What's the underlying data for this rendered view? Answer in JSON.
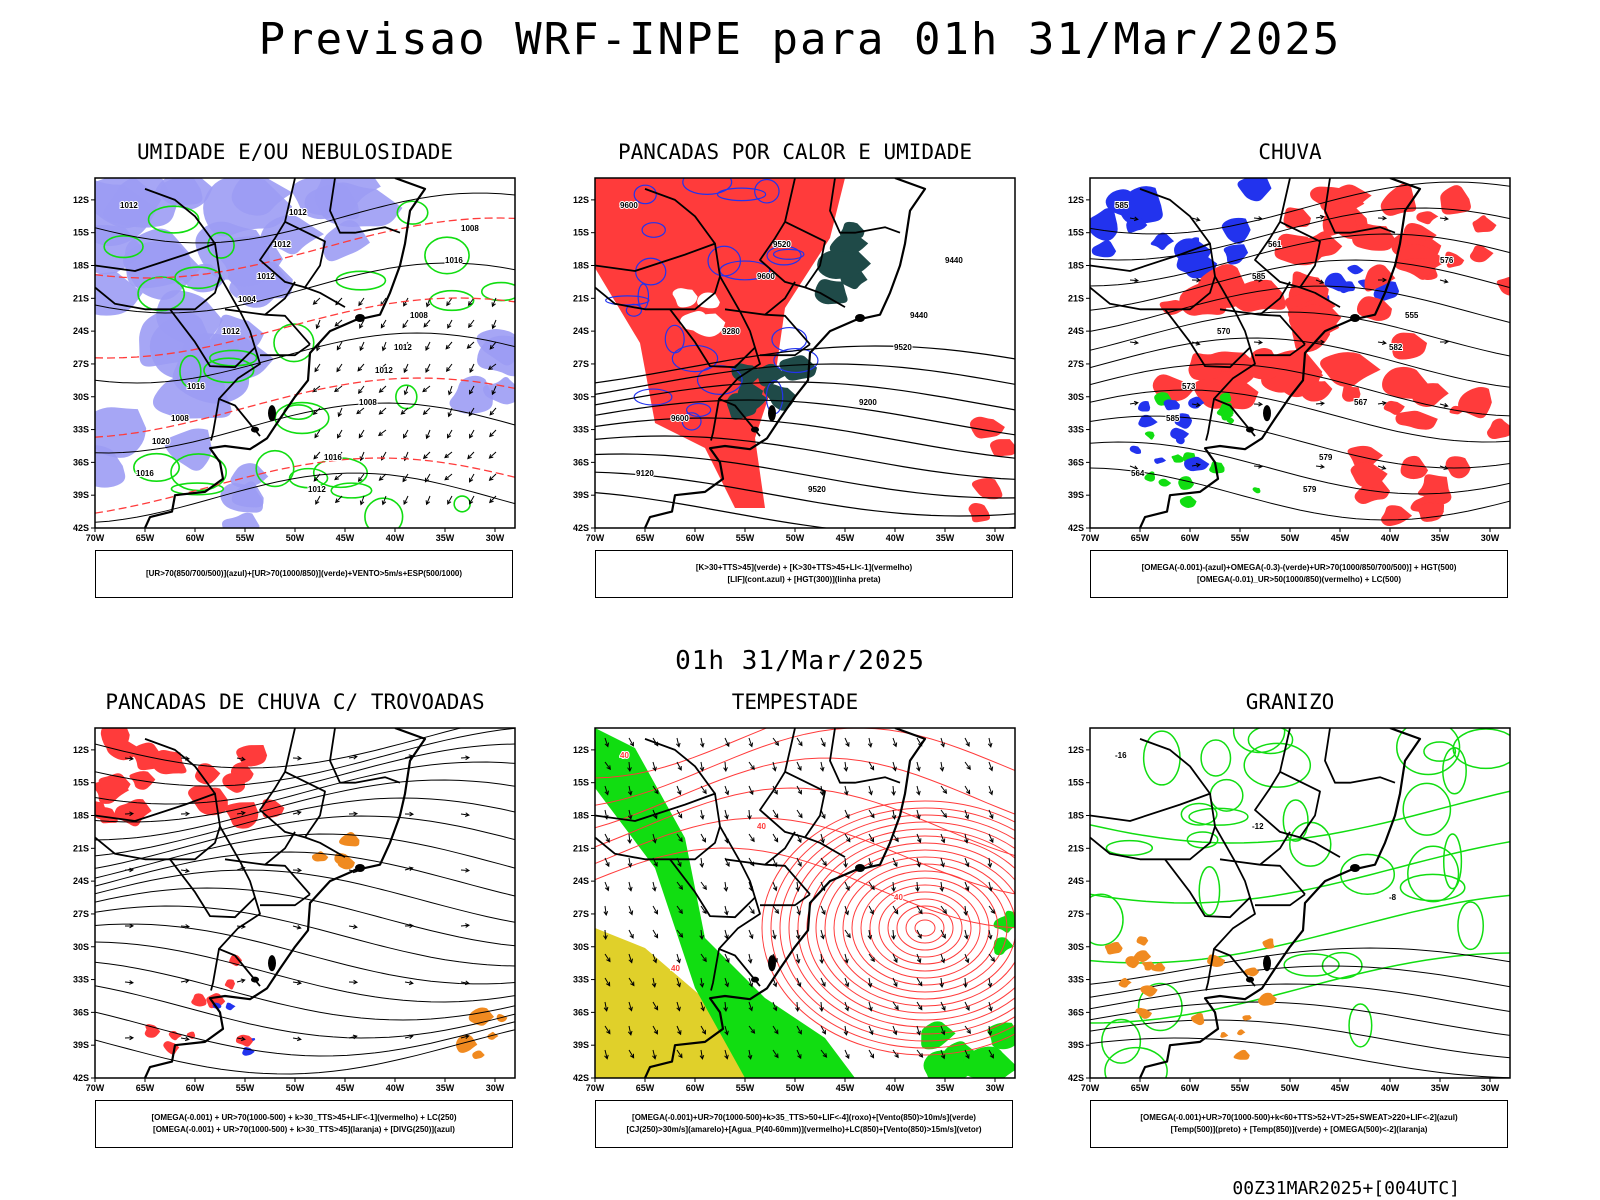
{
  "title": "Previsao WRF-INPE  para 01h 31/Mar/2025",
  "middle_title": "01h 31/Mar/2025",
  "footer": "00Z31MAR2025+[004UTC]",
  "colors": {
    "red": "#ff3b3b",
    "blue": "#2233ee",
    "green": "#11dd11",
    "lavender": "#9c9cf4",
    "darkteal": "#1f4a48",
    "yellow": "#e0d02a",
    "orange": "#f08a20"
  },
  "chart_data": [
    {
      "type": "heatmap",
      "title": "UMIDADE E/OU NEBULOSIDADE",
      "legend": [
        "[UR>70(850/700/500)](azul)+[UR>70(1000/850)](verde)+VENTO>5m/s+ESP(500/1000)"
      ],
      "xticks": [
        "70W",
        "65W",
        "60W",
        "55W",
        "50W",
        "45W",
        "40W",
        "35W",
        "30W"
      ],
      "yticks": [
        "12S",
        "15S",
        "18S",
        "21S",
        "24S",
        "27S",
        "30S",
        "33S",
        "36S",
        "39S",
        "42S"
      ],
      "xlim": [
        -70,
        -28
      ],
      "ylim": [
        -42,
        -10
      ],
      "contour_labels": [
        "1012",
        "1012",
        "1012",
        "1008",
        "1012",
        "1016",
        "1012",
        "1008",
        "1016",
        "1012",
        "1008",
        "1016",
        "1016",
        "1008",
        "1004",
        "1012",
        "1020",
        "1012"
      ]
    },
    {
      "type": "heatmap",
      "title": "PANCADAS POR CALOR E UMIDADE",
      "legend": [
        "[K>30+TTS>45](verde) + [K>30+TTS>45+LI<-1](vermelho)",
        "[LIF](cont.azul) + [HGT(300)](linha preta)"
      ],
      "xticks": [
        "70W",
        "65W",
        "60W",
        "55W",
        "50W",
        "45W",
        "40W",
        "35W",
        "30W"
      ],
      "yticks": [
        "12S",
        "15S",
        "18S",
        "21S",
        "24S",
        "27S",
        "30S",
        "33S",
        "36S",
        "39S",
        "42S"
      ],
      "xlim": [
        -70,
        -28
      ],
      "ylim": [
        -42,
        -10
      ],
      "contour_labels": [
        "9600",
        "9600",
        "9520",
        "9600",
        "9520",
        "9440",
        "9280",
        "9200",
        "9120",
        "9520",
        "9440"
      ]
    },
    {
      "type": "heatmap",
      "title": "CHUVA",
      "legend": [
        "[OMEGA(-0.001)-(azul)+OMEGA(-0.3)-(verde)+UR>70(1000/850/700/500)] + HGT(500)",
        "[OMEGA(-0.01)_UR>50(1000/850)(vermelho) + LC(500)"
      ],
      "xticks": [
        "70W",
        "65W",
        "60W",
        "55W",
        "50W",
        "45W",
        "40W",
        "35W",
        "30W"
      ],
      "yticks": [
        "12S",
        "15S",
        "18S",
        "21S",
        "24S",
        "27S",
        "30S",
        "33S",
        "36S",
        "39S",
        "42S"
      ],
      "xlim": [
        -70,
        -28
      ],
      "ylim": [
        -42,
        -10
      ],
      "contour_labels": [
        "585",
        "585",
        "582",
        "585",
        "579",
        "576",
        "570",
        "567",
        "564",
        "561",
        "555",
        "573",
        "579"
      ]
    },
    {
      "type": "heatmap",
      "title": "PANCADAS DE CHUVA C/ TROVOADAS",
      "legend": [
        "[OMEGA(-0.001) + UR>70(1000-500) + k>30_TTS>45+LIF<-1](vermelho) + LC(250)",
        "[OMEGA(-0.001) + UR>70(1000-500) + k>30_TTS>45](laranja) + [DIVG(250)](azul)"
      ],
      "xticks": [
        "70W",
        "65W",
        "60W",
        "55W",
        "50W",
        "45W",
        "40W",
        "35W",
        "30W"
      ],
      "yticks": [
        "12S",
        "15S",
        "18S",
        "21S",
        "24S",
        "27S",
        "30S",
        "33S",
        "36S",
        "39S",
        "42S"
      ],
      "xlim": [
        -70,
        -28
      ],
      "ylim": [
        -42,
        -10
      ]
    },
    {
      "type": "heatmap",
      "title": "TEMPESTADE",
      "legend": [
        "[OMEGA(-0.001)+UR>70(1000-500)+k>35_TTS>50+LIF<-4](roxo)+[Vento(850)>10m/s](verde)",
        "[CJ(250)>30m/s](amarelo)+[Agua_P(40-60mm)](vermelho)+LC(850)+[Vento(850)>15m/s](vetor)"
      ],
      "xticks": [
        "70W",
        "65W",
        "60W",
        "55W",
        "50W",
        "45W",
        "40W",
        "35W",
        "30W"
      ],
      "yticks": [
        "12S",
        "15S",
        "18S",
        "21S",
        "24S",
        "27S",
        "30S",
        "33S",
        "36S",
        "39S",
        "42S"
      ],
      "xlim": [
        -70,
        -28
      ],
      "ylim": [
        -42,
        -10
      ],
      "contour_labels": [
        "40",
        "40",
        "40",
        "40"
      ]
    },
    {
      "type": "heatmap",
      "title": "GRANIZO",
      "legend": [
        "[OMEGA(-0.001)+UR>70(1000-500)+k<60+TTS>52+VT>25+SWEAT>220+LIF<-2](azul)",
        "[Temp(500)](preto) + [Temp(850)](verde) + [OMEGA(500)<-2](laranja)"
      ],
      "xticks": [
        "70W",
        "65W",
        "60W",
        "55W",
        "50W",
        "45W",
        "40W",
        "35W",
        "30W"
      ],
      "yticks": [
        "12S",
        "15S",
        "18S",
        "21S",
        "24S",
        "27S",
        "30S",
        "33S",
        "36S",
        "39S",
        "42S"
      ],
      "xlim": [
        -70,
        -28
      ],
      "ylim": [
        -42,
        -10
      ],
      "contour_labels": [
        "-16",
        "-12",
        "-8"
      ]
    }
  ]
}
